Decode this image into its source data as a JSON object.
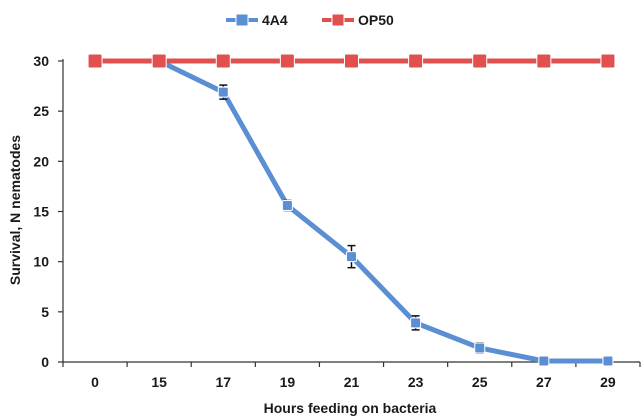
{
  "chart_data": {
    "type": "line",
    "title": "",
    "xlabel": "Hours feeding on bacteria",
    "ylabel": "Survival, N nematodes",
    "categories": [
      "0",
      "15",
      "17",
      "19",
      "21",
      "23",
      "25",
      "27",
      "29"
    ],
    "ylim": [
      0,
      30
    ],
    "yticks": [
      0,
      5,
      10,
      15,
      20,
      25,
      30
    ],
    "grid": false,
    "legend_position": "top-center",
    "series": [
      {
        "name": "4A4",
        "color": "#5b8fd4",
        "marker": "square",
        "values": [
          null,
          30,
          26.9,
          15.6,
          10.5,
          3.9,
          1.4,
          0.1,
          0.1
        ],
        "errors": [
          null,
          0.3,
          0.7,
          0.5,
          1.1,
          0.7,
          0.5,
          0.1,
          0.1
        ]
      },
      {
        "name": "OP50",
        "color": "#e0504f",
        "marker": "square",
        "values": [
          30,
          30,
          30,
          30,
          30,
          30,
          30,
          30,
          30
        ],
        "errors": [
          null,
          null,
          null,
          null,
          null,
          null,
          null,
          null,
          null
        ]
      }
    ]
  }
}
